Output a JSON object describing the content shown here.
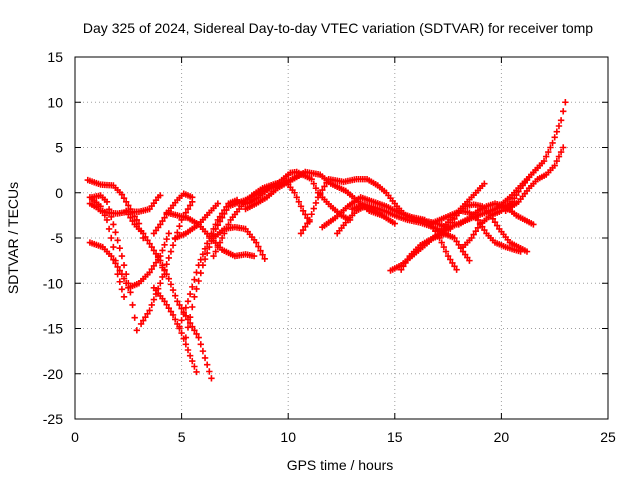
{
  "chart_data": {
    "type": "scatter",
    "title": "Day 325 of 2024, Sidereal Day-to-day VTEC variation (SDTVAR) for receiver tomp",
    "xlabel": "GPS time / hours",
    "ylabel": "SDTVAR / TECUs",
    "xlim": [
      0,
      25
    ],
    "ylim": [
      -25,
      15
    ],
    "xticks": [
      0,
      5,
      10,
      15,
      20,
      25
    ],
    "yticks": [
      -25,
      -20,
      -15,
      -10,
      -5,
      0,
      5,
      10,
      15
    ],
    "grid": true,
    "marker": "+",
    "series_color": "#ff0000",
    "tracks": [
      [
        [
          0.6,
          1.4
        ],
        [
          1.2,
          0.9
        ],
        [
          1.8,
          0.8
        ],
        [
          2.2,
          -0.2
        ],
        [
          2.6,
          -1.8
        ],
        [
          3.0,
          -3.4
        ],
        [
          3.2,
          -5.0
        ]
      ],
      [
        [
          0.7,
          -0.5
        ],
        [
          1.2,
          -1.5
        ],
        [
          1.5,
          -3.0
        ],
        [
          1.8,
          -6.0
        ],
        [
          2.0,
          -9.0
        ],
        [
          2.3,
          -11.5
        ]
      ],
      [
        [
          0.7,
          -1.2
        ],
        [
          1.0,
          -1.6
        ],
        [
          1.2,
          -2.0
        ],
        [
          1.5,
          -2.2
        ],
        [
          2.0,
          -2.3
        ],
        [
          2.5,
          -2.1
        ],
        [
          3.0,
          -2.1
        ],
        [
          3.5,
          -1.8
        ],
        [
          3.9,
          -0.5
        ],
        [
          4.0,
          -0.3
        ]
      ],
      [
        [
          0.8,
          -0.5
        ],
        [
          1.2,
          -0.3
        ],
        [
          1.5,
          -1.0
        ],
        [
          1.8,
          -3.5
        ],
        [
          2.2,
          -7.0
        ],
        [
          2.6,
          -11.0
        ],
        [
          2.9,
          -15.2
        ]
      ],
      [
        [
          0.7,
          -5.5
        ],
        [
          1.3,
          -6.0
        ],
        [
          1.7,
          -7.0
        ],
        [
          2.2,
          -9.0
        ],
        [
          2.5,
          -10.5
        ],
        [
          3.0,
          -10.0
        ],
        [
          3.5,
          -8.8
        ],
        [
          4.0,
          -7.0
        ],
        [
          4.4,
          -4.5
        ]
      ],
      [
        [
          2.4,
          -2.0
        ],
        [
          2.8,
          -3.5
        ],
        [
          3.2,
          -4.5
        ],
        [
          3.6,
          -6.0
        ],
        [
          4.0,
          -7.5
        ],
        [
          4.2,
          -9.0
        ]
      ],
      [
        [
          3.1,
          -14.5
        ],
        [
          3.5,
          -13.0
        ],
        [
          4.0,
          -10.0
        ],
        [
          4.5,
          -6.5
        ],
        [
          5.0,
          -3.0
        ],
        [
          5.5,
          -1.0
        ]
      ],
      [
        [
          3.7,
          -4.5
        ],
        [
          4.0,
          -3.5
        ],
        [
          4.4,
          -2.0
        ],
        [
          4.8,
          -0.8
        ],
        [
          5.1,
          -0.1
        ],
        [
          5.5,
          -0.5
        ]
      ],
      [
        [
          4.3,
          -2.2
        ],
        [
          4.8,
          -2.5
        ],
        [
          5.3,
          -2.8
        ],
        [
          5.8,
          -3.5
        ],
        [
          6.3,
          -4.8
        ],
        [
          6.9,
          -6.3
        ],
        [
          7.5,
          -7.0
        ],
        [
          8.0,
          -6.8
        ],
        [
          8.4,
          -7.0
        ]
      ],
      [
        [
          3.7,
          -10.5
        ],
        [
          4.2,
          -12.0
        ],
        [
          4.6,
          -13.5
        ],
        [
          5.0,
          -15.5
        ],
        [
          5.4,
          -18.0
        ],
        [
          5.7,
          -19.8
        ]
      ],
      [
        [
          3.9,
          -7.0
        ],
        [
          4.4,
          -9.5
        ],
        [
          4.8,
          -12.0
        ],
        [
          5.3,
          -14.0
        ],
        [
          5.8,
          -16.0
        ],
        [
          6.2,
          -19.0
        ],
        [
          6.4,
          -20.5
        ]
      ],
      [
        [
          4.9,
          -14.8
        ],
        [
          5.3,
          -12.0
        ],
        [
          5.8,
          -8.0
        ],
        [
          6.3,
          -5.0
        ],
        [
          6.7,
          -3.0
        ],
        [
          7.2,
          -1.2
        ],
        [
          7.6,
          -0.8
        ]
      ],
      [
        [
          5.2,
          -16.0
        ],
        [
          5.6,
          -11.5
        ],
        [
          6.0,
          -8.0
        ],
        [
          6.6,
          -4.0
        ],
        [
          7.2,
          -1.5
        ],
        [
          8.0,
          -0.8
        ],
        [
          8.8,
          0.2
        ],
        [
          9.5,
          0.8
        ],
        [
          10.2,
          1.5
        ],
        [
          10.6,
          2.0
        ]
      ],
      [
        [
          4.7,
          -5.0
        ],
        [
          5.2,
          -4.5
        ],
        [
          5.8,
          -3.5
        ],
        [
          6.3,
          -2.2
        ],
        [
          6.7,
          -1.2
        ]
      ],
      [
        [
          6.5,
          -5.0
        ],
        [
          7.0,
          -4.0
        ],
        [
          7.5,
          -3.8
        ],
        [
          8.0,
          -4.0
        ],
        [
          8.5,
          -5.5
        ],
        [
          8.9,
          -7.3
        ]
      ],
      [
        [
          6.5,
          -7.0
        ],
        [
          6.9,
          -5.0
        ],
        [
          7.3,
          -3.0
        ],
        [
          7.8,
          -1.5
        ],
        [
          8.3,
          -0.3
        ],
        [
          8.8,
          0.5
        ],
        [
          9.4,
          1.0
        ],
        [
          9.9,
          1.2
        ],
        [
          10.3,
          0.0
        ],
        [
          10.7,
          -2.0
        ],
        [
          11.0,
          -3.2
        ]
      ],
      [
        [
          7.6,
          -1.0
        ],
        [
          8.1,
          -1.2
        ],
        [
          8.6,
          -0.5
        ],
        [
          9.1,
          0.5
        ],
        [
          9.6,
          1.2
        ],
        [
          10.1,
          2.2
        ],
        [
          10.4,
          2.3
        ],
        [
          11.1,
          1.5
        ],
        [
          11.4,
          0.0
        ],
        [
          12.0,
          -1.5
        ],
        [
          12.5,
          -2.5
        ],
        [
          12.9,
          -3.0
        ]
      ],
      [
        [
          8.0,
          -1.8
        ],
        [
          8.5,
          -1.2
        ],
        [
          9.0,
          -0.5
        ],
        [
          9.5,
          0.5
        ],
        [
          10.0,
          1.2
        ],
        [
          10.8,
          2.3
        ],
        [
          11.5,
          2.0
        ],
        [
          12.0,
          1.0
        ],
        [
          12.7,
          0.2
        ],
        [
          13.3,
          -1.0
        ],
        [
          13.8,
          -2.0
        ],
        [
          14.4,
          -2.5
        ]
      ],
      [
        [
          10.6,
          -4.5
        ],
        [
          11.0,
          -3.0
        ],
        [
          11.4,
          -0.5
        ],
        [
          11.9,
          1.5
        ],
        [
          12.6,
          1.2
        ],
        [
          13.2,
          1.5
        ],
        [
          13.7,
          1.5
        ],
        [
          14.2,
          0.8
        ],
        [
          14.6,
          0.0
        ],
        [
          15.1,
          -1.5
        ],
        [
          15.5,
          -2.5
        ],
        [
          16.0,
          -3.0
        ],
        [
          16.6,
          -3.2
        ],
        [
          17.1,
          -3.5
        ],
        [
          17.6,
          -4.0
        ]
      ],
      [
        [
          11.6,
          -3.8
        ],
        [
          12.2,
          -2.8
        ],
        [
          12.8,
          -1.5
        ],
        [
          13.4,
          -0.5
        ],
        [
          14.0,
          -1.0
        ],
        [
          14.6,
          -1.5
        ],
        [
          15.2,
          -2.2
        ],
        [
          15.8,
          -2.7
        ],
        [
          16.4,
          -3.0
        ]
      ],
      [
        [
          12.3,
          -4.5
        ],
        [
          12.8,
          -3.0
        ],
        [
          13.2,
          -2.0
        ],
        [
          13.6,
          -1.5
        ],
        [
          14.1,
          -2.0
        ],
        [
          14.6,
          -2.8
        ],
        [
          15.0,
          -3.4
        ]
      ],
      [
        [
          13.0,
          -1.8
        ],
        [
          13.5,
          -1.3
        ],
        [
          14.0,
          -1.6
        ],
        [
          14.5,
          -2.0
        ],
        [
          15.1,
          -2.6
        ],
        [
          15.6,
          -3.0
        ],
        [
          16.2,
          -3.3
        ],
        [
          16.8,
          -3.8
        ],
        [
          17.3,
          -4.5
        ],
        [
          17.8,
          -5.0
        ],
        [
          18.2,
          -6.5
        ],
        [
          18.5,
          -7.5
        ]
      ],
      [
        [
          14.8,
          -8.6
        ],
        [
          15.3,
          -8.0
        ],
        [
          15.8,
          -7.0
        ],
        [
          16.3,
          -6.0
        ],
        [
          16.9,
          -4.8
        ],
        [
          17.4,
          -4.0
        ],
        [
          17.9,
          -3.5
        ],
        [
          18.4,
          -3.0
        ],
        [
          18.9,
          -2.5
        ],
        [
          19.5,
          -2.0
        ],
        [
          20.0,
          -1.5
        ],
        [
          20.5,
          -1.3
        ]
      ],
      [
        [
          15.3,
          -8.5
        ],
        [
          15.7,
          -7.0
        ],
        [
          16.2,
          -5.8
        ],
        [
          16.8,
          -5.0
        ],
        [
          17.4,
          -4.5
        ],
        [
          17.9,
          -2.5
        ],
        [
          18.3,
          -1.5
        ],
        [
          18.7,
          -1.3
        ],
        [
          19.1,
          -1.5
        ],
        [
          19.5,
          -2.5
        ],
        [
          19.9,
          -4.0
        ],
        [
          20.4,
          -5.5
        ],
        [
          20.8,
          -6.0
        ],
        [
          21.2,
          -6.5
        ]
      ],
      [
        [
          16.3,
          -3.0
        ],
        [
          16.7,
          -3.5
        ],
        [
          17.1,
          -5.0
        ],
        [
          17.5,
          -7.0
        ],
        [
          17.9,
          -8.5
        ]
      ],
      [
        [
          16.6,
          -3.5
        ],
        [
          17.1,
          -3.0
        ],
        [
          17.6,
          -2.5
        ],
        [
          18.1,
          -2.0
        ],
        [
          18.5,
          -2.2
        ],
        [
          18.9,
          -3.0
        ],
        [
          19.3,
          -4.5
        ],
        [
          19.7,
          -5.5
        ],
        [
          20.2,
          -6.0
        ],
        [
          20.9,
          -6.5
        ]
      ],
      [
        [
          18.2,
          -6.0
        ],
        [
          18.6,
          -5.0
        ],
        [
          19.0,
          -3.5
        ],
        [
          19.5,
          -2.5
        ],
        [
          20.0,
          -2.0
        ],
        [
          20.5,
          -1.0
        ],
        [
          20.9,
          0.5
        ],
        [
          21.4,
          2.0
        ],
        [
          21.8,
          3.0
        ]
      ],
      [
        [
          17.2,
          -4.0
        ],
        [
          17.6,
          -3.0
        ],
        [
          18.0,
          -2.0
        ],
        [
          18.4,
          -1.0
        ],
        [
          18.8,
          0.0
        ],
        [
          19.2,
          1.0
        ]
      ],
      [
        [
          18.0,
          -3.5
        ],
        [
          18.5,
          -2.8
        ],
        [
          18.9,
          -2.0
        ],
        [
          19.3,
          -1.5
        ],
        [
          19.7,
          -1.2
        ],
        [
          20.2,
          -1.5
        ],
        [
          20.7,
          -2.5
        ],
        [
          21.1,
          -3.0
        ],
        [
          21.5,
          -3.5
        ]
      ],
      [
        [
          19.9,
          -1.5
        ],
        [
          20.4,
          -0.5
        ],
        [
          20.8,
          0.5
        ],
        [
          21.2,
          1.5
        ],
        [
          21.6,
          2.5
        ],
        [
          22.0,
          3.5
        ],
        [
          22.4,
          5.5
        ],
        [
          22.8,
          8.0
        ],
        [
          23.0,
          10.0
        ]
      ],
      [
        [
          20.2,
          -2.0
        ],
        [
          20.8,
          -1.0
        ],
        [
          21.3,
          0.5
        ],
        [
          21.7,
          1.5
        ],
        [
          22.1,
          2.0
        ],
        [
          22.5,
          3.0
        ],
        [
          22.9,
          5.0
        ]
      ]
    ]
  }
}
